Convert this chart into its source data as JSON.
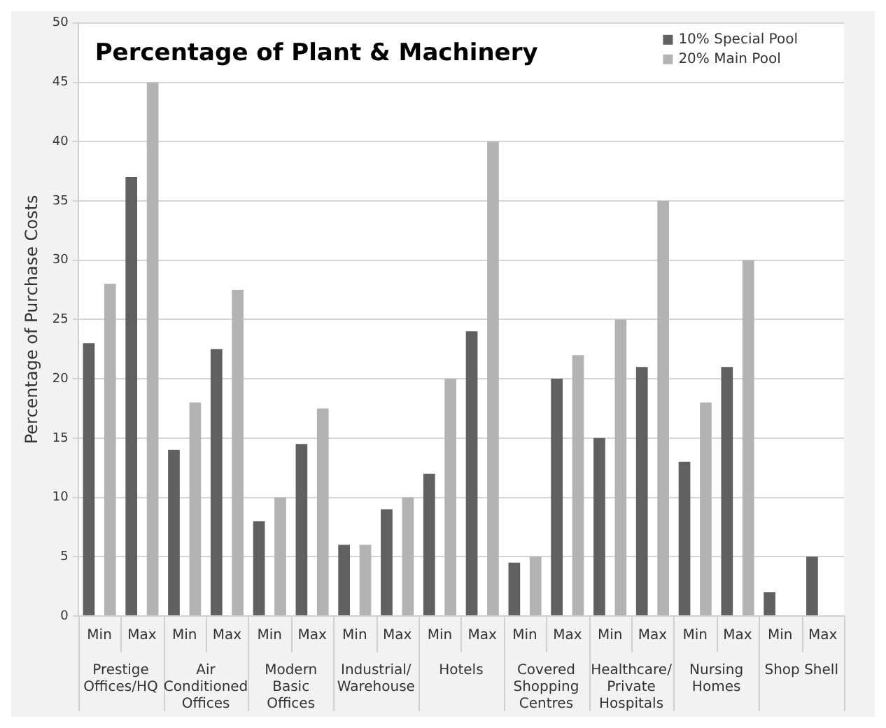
{
  "chart_data": {
    "type": "bar",
    "title": "Percentage of Plant & Machinery",
    "ylabel": "Percentage of Purchase Costs",
    "categories": [
      "Min",
      "Max",
      "Min",
      "Max",
      "Min",
      "Max",
      "Min",
      "Max",
      "Min",
      "Max",
      "Min",
      "Max",
      "Min",
      "Max",
      "Min",
      "Max",
      "Min",
      "Max"
    ],
    "series": [
      {
        "name": "10% Special Pool",
        "color": "#606060",
        "values": [
          23,
          37,
          14,
          22.5,
          8,
          14.5,
          6,
          9,
          12,
          24,
          4.5,
          20,
          15,
          21,
          13,
          21,
          2,
          5
        ]
      },
      {
        "name": "20% Main Pool",
        "color": "#b3b3b3",
        "values": [
          28,
          45,
          18,
          27.5,
          10,
          17.5,
          6,
          10,
          20,
          40,
          5,
          22,
          25,
          35,
          18,
          30,
          null,
          null
        ]
      }
    ],
    "annotations": [
      "Prestige Offices/HQ",
      "Air Conditioned Offices",
      "Modern Basic Offices",
      "Industrial/ Warehouse",
      "Hotels",
      "Covered Shopping Centres",
      "Healthcare/ Private Hospitals",
      "Nursing Homes",
      "Shop Shell"
    ],
    "ylim": [
      0,
      50
    ],
    "yticks": [
      0,
      5,
      10,
      15,
      20,
      25,
      30,
      35,
      40,
      45,
      50
    ],
    "grid": "y",
    "legend": "top right"
  }
}
